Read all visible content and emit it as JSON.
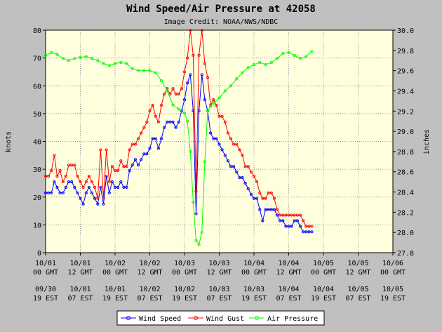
{
  "chart_data": {
    "type": "line",
    "title": "Wind Speed/Air Pressure at 42058",
    "subtitle": "Image Credit: NOAA/NWS/NDBC",
    "ylabel_left": "knots",
    "ylabel_right": "inches",
    "ylim_left": [
      0,
      80
    ],
    "ylim_right": [
      27.8,
      30.0
    ],
    "yticks_left": [
      "0",
      "10",
      "20",
      "30",
      "40",
      "50",
      "60",
      "70",
      "80"
    ],
    "yticks_right": [
      "27.8",
      "28.0",
      "28.2",
      "28.4",
      "28.6",
      "28.8",
      "29.0",
      "29.2",
      "29.4",
      "29.6",
      "29.8",
      "30.0"
    ],
    "x_unit": "hours since 10/01 00 GMT",
    "xlim": [
      0,
      120
    ],
    "xticks_gmt": [
      [
        "10/01",
        "00 GMT"
      ],
      [
        "10/01",
        "12 GMT"
      ],
      [
        "10/02",
        "00 GMT"
      ],
      [
        "10/02",
        "12 GMT"
      ],
      [
        "10/03",
        "00 GMT"
      ],
      [
        "10/03",
        "12 GMT"
      ],
      [
        "10/04",
        "00 GMT"
      ],
      [
        "10/04",
        "12 GMT"
      ],
      [
        "10/05",
        "00 GMT"
      ],
      [
        "10/05",
        "12 GMT"
      ],
      [
        "10/06",
        "00 GMT"
      ]
    ],
    "xticks_est": [
      [
        "09/30",
        "19 EST"
      ],
      [
        "10/01",
        "07 EST"
      ],
      [
        "10/01",
        "19 EST"
      ],
      [
        "10/02",
        "07 EST"
      ],
      [
        "10/02",
        "19 EST"
      ],
      [
        "10/03",
        "07 EST"
      ],
      [
        "10/03",
        "19 EST"
      ],
      [
        "10/04",
        "07 EST"
      ],
      [
        "10/04",
        "19 EST"
      ],
      [
        "10/05",
        "07 EST"
      ],
      [
        "10/05",
        "19 EST"
      ]
    ],
    "grid": true,
    "legend_position": "bottom",
    "series": [
      {
        "name": "Wind Speed",
        "axis": "left",
        "color": "#0000ff",
        "points": [
          [
            0,
            21.5
          ],
          [
            1,
            21.5
          ],
          [
            2,
            21.5
          ],
          [
            3,
            25.5
          ],
          [
            4,
            23.5
          ],
          [
            5,
            21.5
          ],
          [
            6,
            21.5
          ],
          [
            7,
            23.5
          ],
          [
            8,
            25.5
          ],
          [
            9,
            25.5
          ],
          [
            10,
            23.5
          ],
          [
            11,
            21.5
          ],
          [
            12,
            19.5
          ],
          [
            13,
            17.5
          ],
          [
            14,
            21.5
          ],
          [
            15,
            23.5
          ],
          [
            16,
            21.5
          ],
          [
            17,
            19.5
          ],
          [
            18,
            17.5
          ],
          [
            19,
            23.5
          ],
          [
            20,
            17.5
          ],
          [
            21,
            27.5
          ],
          [
            22,
            21.5
          ],
          [
            23,
            25.5
          ],
          [
            24,
            23.5
          ],
          [
            25,
            23.5
          ],
          [
            26,
            25.5
          ],
          [
            27,
            23.5
          ],
          [
            28,
            23.5
          ],
          [
            29,
            29.5
          ],
          [
            30,
            31.5
          ],
          [
            31,
            33.5
          ],
          [
            32,
            31.5
          ],
          [
            33,
            33.5
          ],
          [
            34,
            35.5
          ],
          [
            35,
            35.5
          ],
          [
            36,
            37.5
          ],
          [
            37,
            41
          ],
          [
            38,
            41
          ],
          [
            39,
            37.5
          ],
          [
            40,
            41
          ],
          [
            41,
            45
          ],
          [
            42,
            47
          ],
          [
            43,
            47
          ],
          [
            44,
            47
          ],
          [
            45,
            45
          ],
          [
            46,
            47
          ],
          [
            47,
            51
          ],
          [
            48,
            55
          ],
          [
            49,
            61
          ],
          [
            50,
            64
          ],
          [
            51,
            51
          ],
          [
            52,
            14
          ],
          [
            53,
            51
          ],
          [
            54,
            64
          ],
          [
            55,
            55
          ],
          [
            56,
            51
          ],
          [
            57,
            43
          ],
          [
            58,
            41
          ],
          [
            59,
            41
          ],
          [
            60,
            39
          ],
          [
            61,
            37
          ],
          [
            62,
            35
          ],
          [
            63,
            33
          ],
          [
            64,
            31
          ],
          [
            65,
            31
          ],
          [
            66,
            29
          ],
          [
            67,
            27
          ],
          [
            68,
            27
          ],
          [
            69,
            25
          ],
          [
            70,
            23
          ],
          [
            71,
            21
          ],
          [
            72,
            19.5
          ],
          [
            73,
            19.5
          ],
          [
            74,
            15.5
          ],
          [
            75,
            11.5
          ],
          [
            76,
            15.5
          ],
          [
            77,
            15.5
          ],
          [
            78,
            15.5
          ],
          [
            79,
            15.5
          ],
          [
            80,
            13.5
          ],
          [
            81,
            11.5
          ],
          [
            82,
            11.5
          ],
          [
            83,
            9.5
          ],
          [
            84,
            9.5
          ],
          [
            85,
            9.5
          ],
          [
            86,
            11.5
          ],
          [
            87,
            11.5
          ],
          [
            88,
            9.5
          ],
          [
            89,
            7.5
          ],
          [
            90,
            7.5
          ],
          [
            91,
            7.5
          ],
          [
            92,
            7.5
          ]
        ]
      },
      {
        "name": "Wind Gust",
        "axis": "left",
        "color": "#ff0000",
        "points": [
          [
            0,
            27.5
          ],
          [
            1,
            27.5
          ],
          [
            2,
            29.5
          ],
          [
            3,
            35
          ],
          [
            4,
            27.5
          ],
          [
            5,
            29.5
          ],
          [
            6,
            25.5
          ],
          [
            7,
            27.5
          ],
          [
            8,
            31.5
          ],
          [
            9,
            31.5
          ],
          [
            10,
            31.5
          ],
          [
            11,
            27.5
          ],
          [
            12,
            25.5
          ],
          [
            13,
            23.5
          ],
          [
            14,
            25.5
          ],
          [
            15,
            27.5
          ],
          [
            16,
            25.5
          ],
          [
            17,
            23.5
          ],
          [
            18,
            19.5
          ],
          [
            19,
            37
          ],
          [
            20,
            19.5
          ],
          [
            21,
            37
          ],
          [
            22,
            25.5
          ],
          [
            23,
            31
          ],
          [
            24,
            29.5
          ],
          [
            25,
            29.5
          ],
          [
            26,
            33
          ],
          [
            27,
            31
          ],
          [
            28,
            31
          ],
          [
            29,
            37
          ],
          [
            30,
            39
          ],
          [
            31,
            39
          ],
          [
            32,
            41
          ],
          [
            33,
            43
          ],
          [
            34,
            45
          ],
          [
            35,
            47
          ],
          [
            36,
            51
          ],
          [
            37,
            53
          ],
          [
            38,
            49
          ],
          [
            39,
            47
          ],
          [
            40,
            53
          ],
          [
            41,
            57
          ],
          [
            42,
            59
          ],
          [
            43,
            57
          ],
          [
            44,
            59
          ],
          [
            45,
            57
          ],
          [
            46,
            57
          ],
          [
            47,
            59
          ],
          [
            48,
            65
          ],
          [
            49,
            70
          ],
          [
            50,
            80
          ],
          [
            51,
            71
          ],
          [
            52,
            22
          ],
          [
            53,
            71
          ],
          [
            54,
            80
          ],
          [
            55,
            68
          ],
          [
            56,
            63
          ],
          [
            57,
            53
          ],
          [
            58,
            55
          ],
          [
            59,
            53
          ],
          [
            60,
            49
          ],
          [
            61,
            49
          ],
          [
            62,
            47
          ],
          [
            63,
            43
          ],
          [
            64,
            41
          ],
          [
            65,
            39
          ],
          [
            66,
            39
          ],
          [
            67,
            37
          ],
          [
            68,
            35
          ],
          [
            69,
            31
          ],
          [
            70,
            31
          ],
          [
            71,
            29
          ],
          [
            72,
            27.5
          ],
          [
            73,
            25.5
          ],
          [
            74,
            21.5
          ],
          [
            75,
            19.5
          ],
          [
            76,
            19.5
          ],
          [
            77,
            21.5
          ],
          [
            78,
            21.5
          ],
          [
            79,
            19.5
          ],
          [
            80,
            15.5
          ],
          [
            81,
            13.5
          ],
          [
            82,
            13.5
          ],
          [
            83,
            13.5
          ],
          [
            84,
            13.5
          ],
          [
            85,
            13.5
          ],
          [
            86,
            13.5
          ],
          [
            87,
            13.5
          ],
          [
            88,
            13.5
          ],
          [
            89,
            11.5
          ],
          [
            90,
            9.5
          ],
          [
            91,
            9.5
          ],
          [
            92,
            9.5
          ]
        ]
      },
      {
        "name": "Air Pressure",
        "axis": "right",
        "color": "#00ff00",
        "points": [
          [
            0,
            29.75
          ],
          [
            2,
            29.78
          ],
          [
            4,
            29.76
          ],
          [
            6,
            29.72
          ],
          [
            8,
            29.7
          ],
          [
            10,
            29.72
          ],
          [
            12,
            29.73
          ],
          [
            14,
            29.74
          ],
          [
            16,
            29.72
          ],
          [
            18,
            29.7
          ],
          [
            20,
            29.67
          ],
          [
            22,
            29.65
          ],
          [
            24,
            29.67
          ],
          [
            26,
            29.68
          ],
          [
            28,
            29.67
          ],
          [
            30,
            29.62
          ],
          [
            32,
            29.6
          ],
          [
            34,
            29.6
          ],
          [
            36,
            29.6
          ],
          [
            38,
            29.58
          ],
          [
            40,
            29.5
          ],
          [
            42,
            29.4
          ],
          [
            44,
            29.26
          ],
          [
            46,
            29.22
          ],
          [
            48,
            29.18
          ],
          [
            49,
            29.1
          ],
          [
            50,
            28.8
          ],
          [
            51,
            28.3
          ],
          [
            52,
            27.92
          ],
          [
            53,
            27.88
          ],
          [
            54,
            28.0
          ],
          [
            55,
            28.7
          ],
          [
            56,
            29.2
          ],
          [
            57,
            29.25
          ],
          [
            58,
            29.28
          ],
          [
            60,
            29.33
          ],
          [
            62,
            29.4
          ],
          [
            64,
            29.45
          ],
          [
            66,
            29.52
          ],
          [
            68,
            29.58
          ],
          [
            70,
            29.63
          ],
          [
            72,
            29.66
          ],
          [
            74,
            29.68
          ],
          [
            76,
            29.66
          ],
          [
            78,
            29.68
          ],
          [
            80,
            29.72
          ],
          [
            82,
            29.77
          ],
          [
            84,
            29.78
          ],
          [
            86,
            29.75
          ],
          [
            88,
            29.72
          ],
          [
            90,
            29.74
          ],
          [
            92,
            29.79
          ]
        ]
      }
    ]
  }
}
